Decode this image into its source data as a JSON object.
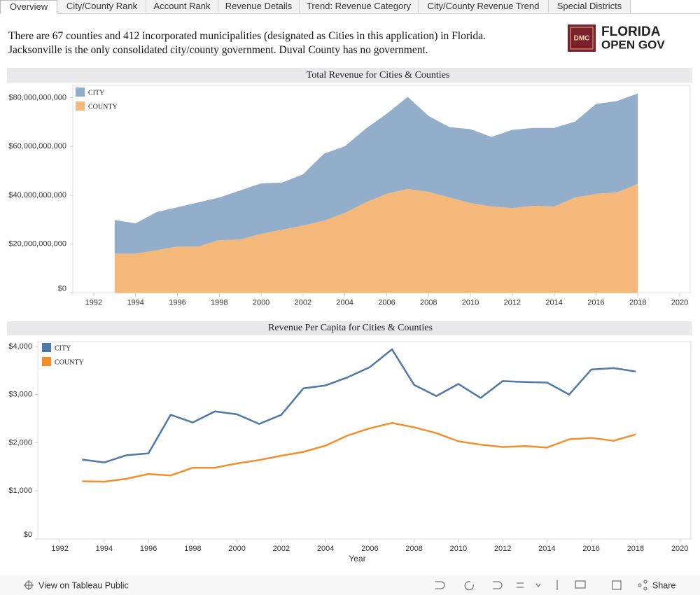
{
  "tabs": [
    "Overview",
    "City/County Rank",
    "Account Rank",
    "Revenue Details",
    "Trend: Revenue Category",
    "City/County Revenue Trend",
    "Special Districts"
  ],
  "intro": [
    "There are 67 counties and 412 incorporated municipalities (designated as Cities in this application) in Florida.",
    "Jacksonville is the only consolidated city/county government. Duval County has no government."
  ],
  "logo": {
    "badge": "DMC",
    "line1": "FLORIDA",
    "line2": "OPEN GOV"
  },
  "chart_data": [
    {
      "type": "stacked-area",
      "title": "Total Revenue for Cities & Counties",
      "x": [
        1993,
        1994,
        1995,
        1996,
        1997,
        1998,
        1999,
        2000,
        2001,
        2002,
        2003,
        2004,
        2005,
        2006,
        2007,
        2008,
        2009,
        2010,
        2011,
        2012,
        2013,
        2014,
        2015,
        2016,
        2017,
        2018
      ],
      "series": [
        {
          "name": "CITY",
          "color": "#93aecb",
          "values": [
            13800000000,
            12400000000,
            15600000000,
            16100000000,
            18100000000,
            17500000000,
            20100000000,
            20700000000,
            19300000000,
            21000000000,
            27400000000,
            27300000000,
            30200000000,
            32800000000,
            37700000000,
            31100000000,
            28800000000,
            30300000000,
            28500000000,
            32000000000,
            31900000000,
            32200000000,
            31100000000,
            36800000000,
            37400000000,
            37100000000
          ]
        },
        {
          "name": "COUNTY",
          "color": "#f5b87b",
          "values": [
            16100000000,
            16100000000,
            17500000000,
            19000000000,
            19000000000,
            21600000000,
            21900000000,
            24200000000,
            25900000000,
            27600000000,
            29600000000,
            32800000000,
            37100000000,
            40600000000,
            42600000000,
            41400000000,
            39100000000,
            36800000000,
            35400000000,
            34800000000,
            35700000000,
            35400000000,
            39100000000,
            40600000000,
            41200000000,
            44600000000
          ]
        }
      ],
      "xlim": [
        1991,
        2020.5
      ],
      "xticks": [
        1992,
        1994,
        1996,
        1998,
        2000,
        2002,
        2004,
        2006,
        2008,
        2010,
        2012,
        2014,
        2016,
        2018,
        2020
      ],
      "ylim": [
        0,
        85000000000
      ],
      "yticks": [
        {
          "value": 0,
          "label": "$0"
        },
        {
          "value": 20000000000,
          "label": "$20,000,000,000"
        },
        {
          "value": 40000000000,
          "label": "$40,000,000,000"
        },
        {
          "value": 60000000000,
          "label": "$60,000,000,000"
        },
        {
          "value": 80000000000,
          "label": "$80,000,000,000"
        }
      ],
      "legend": "top-left"
    },
    {
      "type": "line",
      "title": "Revenue Per Capita for Cities & Counties",
      "x_label": "Year",
      "x": [
        1993,
        1994,
        1995,
        1996,
        1997,
        1998,
        1999,
        2000,
        2001,
        2002,
        2003,
        2004,
        2005,
        2006,
        2007,
        2008,
        2009,
        2010,
        2011,
        2012,
        2013,
        2014,
        2015,
        2016,
        2017,
        2018
      ],
      "series": [
        {
          "name": "CITY",
          "color": "#4e79a7",
          "values": [
            1650,
            1590,
            1740,
            1780,
            2580,
            2420,
            2650,
            2590,
            2390,
            2580,
            3130,
            3190,
            3360,
            3570,
            3940,
            3200,
            2970,
            3220,
            2930,
            3280,
            3260,
            3250,
            3000,
            3520,
            3550,
            3480
          ]
        },
        {
          "name": "COUNTY",
          "color": "#f28e2b",
          "values": [
            1200,
            1190,
            1250,
            1350,
            1320,
            1480,
            1480,
            1570,
            1640,
            1730,
            1810,
            1940,
            2150,
            2300,
            2410,
            2320,
            2200,
            2030,
            1960,
            1910,
            1930,
            1900,
            2070,
            2100,
            2040,
            2170
          ]
        }
      ],
      "xlim": [
        1991,
        2020.5
      ],
      "xticks": [
        1992,
        1994,
        1996,
        1998,
        2000,
        2002,
        2004,
        2006,
        2008,
        2010,
        2012,
        2014,
        2016,
        2018,
        2020
      ],
      "ylim": [
        0,
        4100
      ],
      "yticks": [
        {
          "value": 0,
          "label": "$0"
        },
        {
          "value": 1000,
          "label": "$1,000"
        },
        {
          "value": 2000,
          "label": "$2,000"
        },
        {
          "value": 3000,
          "label": "$3,000"
        },
        {
          "value": 4000,
          "label": "$4,000"
        }
      ],
      "legend": "top-left"
    }
  ],
  "footer": {
    "view": "View on Tableau Public",
    "share": "Share"
  }
}
